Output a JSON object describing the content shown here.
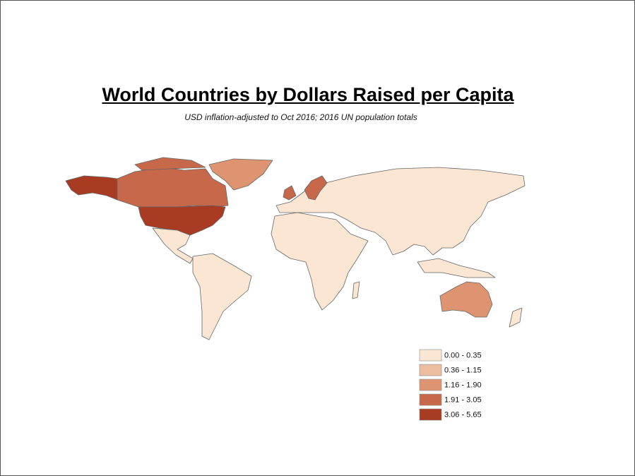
{
  "title": "World Countries by Dollars Raised per Capita",
  "subtitle": "USD inflation-adjusted to Oct 2016; 2016 UN population totals",
  "legend": {
    "items": [
      {
        "label": "0.00 - 0.35",
        "color": "#fbe6d3"
      },
      {
        "label": "0.36 - 1.15",
        "color": "#ecbd9f"
      },
      {
        "label": "1.16 - 1.90",
        "color": "#de9470"
      },
      {
        "label": "1.91 - 3.05",
        "color": "#c7684a"
      },
      {
        "label": "3.06 - 5.65",
        "color": "#a93b22"
      }
    ]
  }
}
